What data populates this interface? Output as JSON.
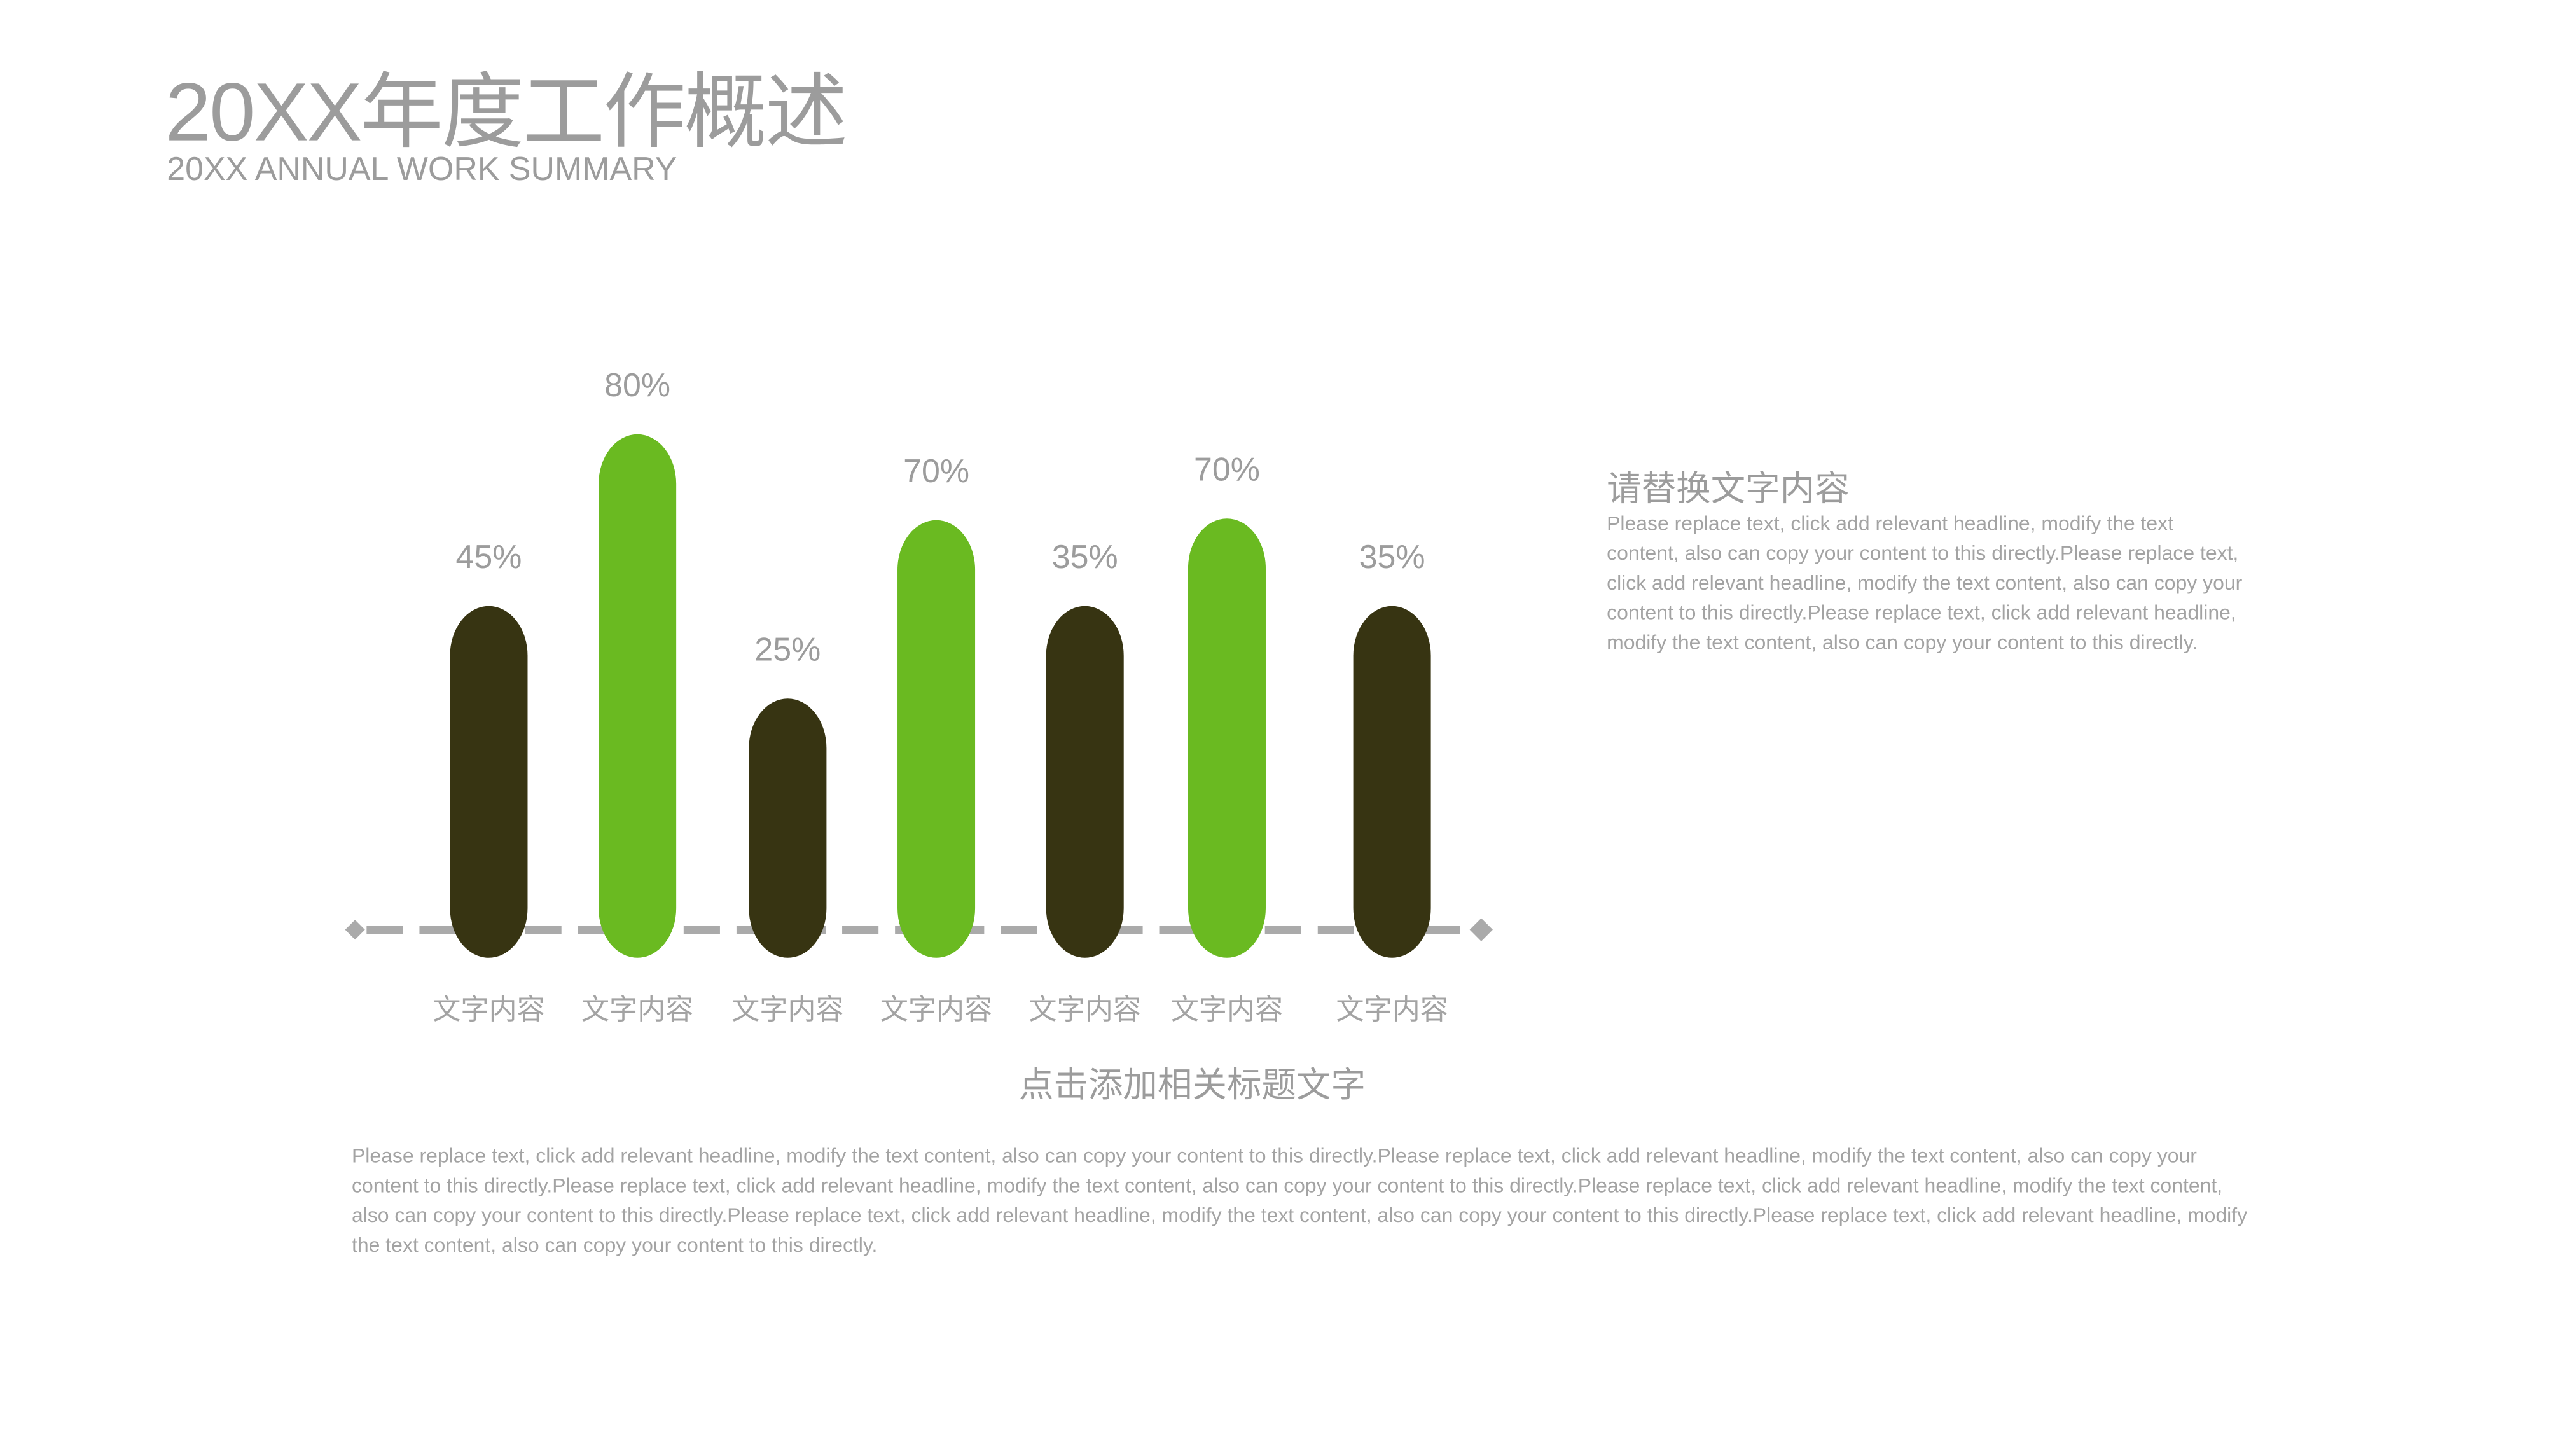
{
  "header": {
    "title": "20XX年度工作概述",
    "subtitle": "20XX ANNUAL WORK SUMMARY"
  },
  "chart_data": {
    "type": "bar",
    "categories": [
      "文字内容",
      "文字内容",
      "文字内容",
      "文字内容",
      "文字内容",
      "文字内容",
      "文字内容"
    ],
    "values": [
      45,
      80,
      25,
      70,
      35,
      70,
      35
    ],
    "value_labels": [
      "45%",
      "80%",
      "25%",
      "70%",
      "35%",
      "70%",
      "35%"
    ],
    "bar_colors": [
      "#373412",
      "#6aba21",
      "#373412",
      "#6aba21",
      "#373412",
      "#6aba21",
      "#373412"
    ],
    "baseline_color": "#aaaaaa",
    "grid": false,
    "title": "",
    "xlabel": "",
    "ylabel": ""
  },
  "chart_caption": "点击添加相关标题文字",
  "bottom_text": "Please replace text, click add relevant headline, modify the text content, also can copy your content to this directly.Please replace text, click add relevant headline, modify the text content, also can copy your content to this directly.Please replace text, click add relevant headline, modify the text content, also can copy your content to this directly.Please replace text, click add relevant headline, modify the text content, also can copy your content to this directly.Please replace text, click add relevant headline, modify the text content, also can copy your content to this directly.Please replace text, click add relevant headline, modify the text content, also can copy your content to this directly.",
  "side_panel": {
    "heading": "请替换文字内容",
    "text": "Please replace text, click add relevant headline, modify the text content, also can copy your content to this directly.Please replace text, click add relevant headline, modify the text content, also can copy your content to this directly.Please replace text, click add relevant headline, modify the text content, also can copy your content to this directly."
  }
}
